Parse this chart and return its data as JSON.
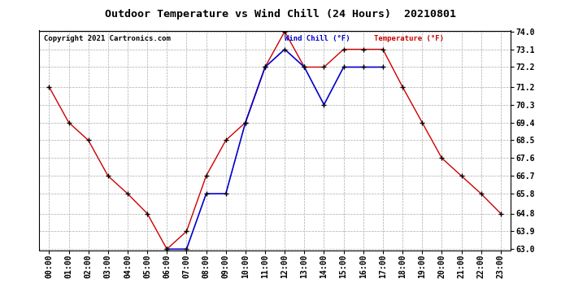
{
  "title": "Outdoor Temperature vs Wind Chill (24 Hours)  20210801",
  "copyright": "Copyright 2021 Cartronics.com",
  "legend_wind_chill": "Wind Chill (°F)",
  "legend_temperature": "Temperature (°F)",
  "hours": [
    "00:00",
    "01:00",
    "02:00",
    "03:00",
    "04:00",
    "05:00",
    "06:00",
    "07:00",
    "08:00",
    "09:00",
    "10:00",
    "11:00",
    "12:00",
    "13:00",
    "14:00",
    "15:00",
    "16:00",
    "17:00",
    "18:00",
    "19:00",
    "20:00",
    "21:00",
    "22:00",
    "23:00"
  ],
  "temperature": [
    71.2,
    69.4,
    68.5,
    66.7,
    65.8,
    64.8,
    63.0,
    63.9,
    66.7,
    68.5,
    69.4,
    72.2,
    74.0,
    72.2,
    72.2,
    73.1,
    73.1,
    73.1,
    71.2,
    69.4,
    67.6,
    66.7,
    65.8,
    64.8
  ],
  "wind_chill": [
    null,
    null,
    null,
    null,
    null,
    null,
    63.0,
    63.0,
    65.8,
    65.8,
    69.4,
    72.2,
    73.1,
    72.2,
    70.3,
    72.2,
    72.2,
    72.2,
    null,
    null,
    null,
    null,
    null,
    null
  ],
  "ylim_min": 63.0,
  "ylim_max": 74.0,
  "yticks": [
    63.0,
    63.9,
    64.8,
    65.8,
    66.7,
    67.6,
    68.5,
    69.4,
    70.3,
    71.2,
    72.2,
    73.1,
    74.0
  ],
  "temp_color": "#cc0000",
  "wind_chill_color": "#0000cc",
  "bg_color": "#ffffff",
  "grid_color": "#aaaaaa",
  "title_color": "#000000",
  "copyright_color": "#000000",
  "legend_wind_color": "#0000cc",
  "legend_temp_color": "#cc0000",
  "marker_color": "#000000"
}
